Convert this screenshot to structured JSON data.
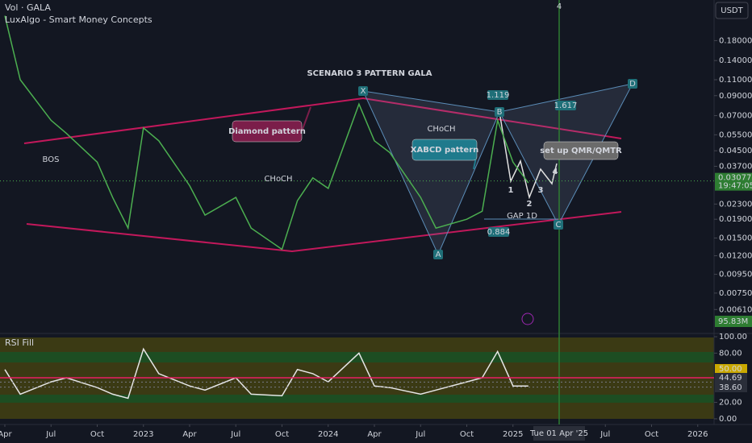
{
  "header": {
    "symbol": "Vol · GALA",
    "indicator": "LuxAlgo - Smart Money Concepts",
    "currency": "USDT",
    "rsi_title": "RSI Fill"
  },
  "chart_data": [
    {
      "type": "line",
      "log_scale": true,
      "color": "#4caf50",
      "x": [
        "2022-04",
        "2022-05",
        "2022-07",
        "2022-08",
        "2022-10",
        "2022-11",
        "2022-12",
        "2023-01",
        "2023-02",
        "2023-04",
        "2023-05",
        "2023-07",
        "2023-08",
        "2023-10",
        "2023-11",
        "2023-12",
        "2024-01",
        "2024-03",
        "2024-04",
        "2024-05",
        "2024-07",
        "2024-08",
        "2024-10",
        "2024-11",
        "2024-12",
        "2025-01",
        "2025-02"
      ],
      "values": [
        0.246,
        0.11,
        0.066,
        0.056,
        0.039,
        0.025,
        0.017,
        0.06,
        0.051,
        0.029,
        0.02,
        0.025,
        0.017,
        0.013,
        0.024,
        0.032,
        0.028,
        0.081,
        0.051,
        0.044,
        0.025,
        0.017,
        0.019,
        0.021,
        0.066,
        0.039,
        0.03
      ],
      "xlim": [
        "2022-04",
        "2026-04"
      ],
      "xticks": [
        {
          "value": "2022-04",
          "label": "Apr"
        },
        {
          "value": "2022-07",
          "label": "Jul"
        },
        {
          "value": "2022-10",
          "label": "Oct"
        },
        {
          "value": "2023-01",
          "label": "2023"
        },
        {
          "value": "2023-04",
          "label": "Apr"
        },
        {
          "value": "2023-07",
          "label": "Jul"
        },
        {
          "value": "2023-10",
          "label": "Oct"
        },
        {
          "value": "2024-01",
          "label": "2024"
        },
        {
          "value": "2024-04",
          "label": "Apr"
        },
        {
          "value": "2024-07",
          "label": "Jul"
        },
        {
          "value": "2024-10",
          "label": "Oct"
        },
        {
          "value": "2025-01",
          "label": "2025"
        },
        {
          "value": "2025-04-01",
          "label": "Tue 01 Apr '25"
        },
        {
          "value": "2025-07",
          "label": "Jul"
        },
        {
          "value": "2025-10",
          "label": "Oct"
        },
        {
          "value": "2026-01",
          "label": "2026"
        }
      ],
      "ylim": [
        0.0047,
        0.3
      ],
      "yticks": [
        {
          "value": 0.18,
          "label": "0.18000"
        },
        {
          "value": 0.14,
          "label": "0.14000"
        },
        {
          "value": 0.11,
          "label": "0.11000"
        },
        {
          "value": 0.09,
          "label": "0.09000"
        },
        {
          "value": 0.07,
          "label": "0.07000"
        },
        {
          "value": 0.055,
          "label": "0.05500"
        },
        {
          "value": 0.045,
          "label": "0.04500"
        },
        {
          "value": 0.037,
          "label": "0.03700"
        },
        {
          "value": 0.023,
          "label": "0.02300"
        },
        {
          "value": 0.019,
          "label": "0.01900"
        },
        {
          "value": 0.015,
          "label": "0.01500"
        },
        {
          "value": 0.012,
          "label": "0.01200"
        },
        {
          "value": 0.0095,
          "label": "0.00950"
        },
        {
          "value": 0.0075,
          "label": "0.00750"
        },
        {
          "value": 0.0061,
          "label": "0.00610"
        }
      ],
      "current": {
        "value": 0.03077,
        "label": "0.03077"
      },
      "countdown": "19:47:05",
      "volume_label": "95.83M",
      "annotations": [
        "SCENARIO 3 PATTERN GALA",
        "Diamond pattern",
        "XABCD pattern",
        "set up QMR/QMTR",
        "GAP 1D",
        "X",
        "A",
        "B",
        "C",
        "D",
        "1.119",
        "1.617",
        "0.884",
        "1",
        "2",
        "3",
        "4",
        "BOS",
        "CHoCH",
        "CHoCH",
        "4"
      ]
    },
    {
      "type": "line",
      "color": "#e6e6e6",
      "x": [
        "2022-04",
        "2022-05",
        "2022-07",
        "2022-08",
        "2022-10",
        "2022-11",
        "2022-12",
        "2023-01",
        "2023-02",
        "2023-04",
        "2023-05",
        "2023-07",
        "2023-08",
        "2023-10",
        "2023-11",
        "2023-12",
        "2024-01",
        "2024-03",
        "2024-04",
        "2024-05",
        "2024-07",
        "2024-08",
        "2024-10",
        "2024-11",
        "2024-12",
        "2025-01",
        "2025-02"
      ],
      "values": [
        60,
        30,
        45,
        50,
        38,
        30,
        25,
        85,
        55,
        40,
        35,
        50,
        30,
        28,
        60,
        55,
        45,
        80,
        40,
        38,
        30,
        35,
        45,
        50,
        82,
        40,
        40
      ],
      "ylim": [
        -3,
        102
      ],
      "yticks": [
        {
          "value": 100,
          "label": "100.00"
        },
        {
          "value": 80,
          "label": "80.00"
        },
        {
          "value": 20,
          "label": "20.00"
        },
        {
          "value": 0,
          "label": "0.00"
        }
      ],
      "levels": [
        {
          "value": 50,
          "label": "50.00"
        },
        {
          "value": 44.69,
          "label": "44.69"
        },
        {
          "value": 38.6,
          "label": "38.60"
        }
      ]
    }
  ]
}
